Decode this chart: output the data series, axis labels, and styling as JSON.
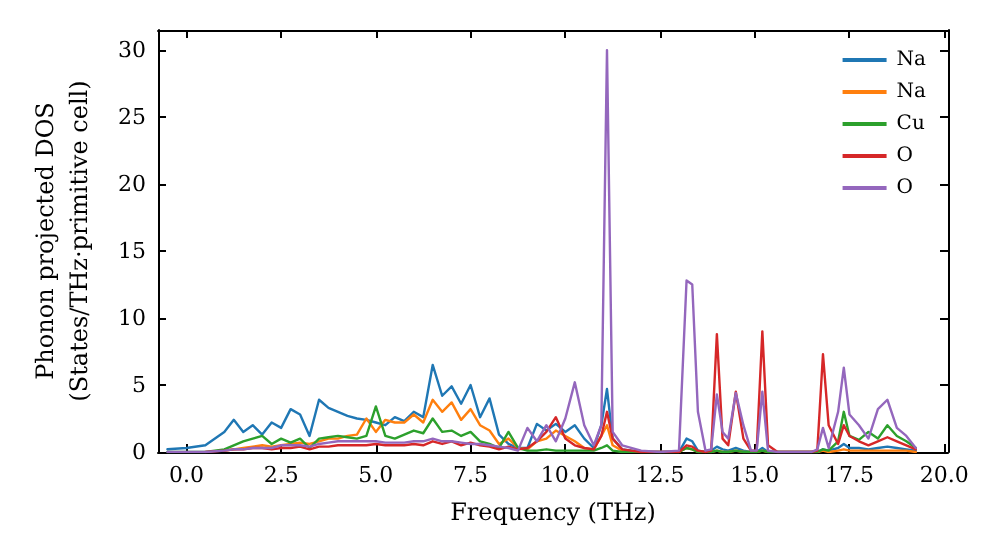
{
  "chart_data": {
    "type": "line",
    "xlabel": "Frequency (THz)",
    "ylabel": "Phonon projected DOS\n(States/THz·primitive cell)",
    "x": [
      -0.5,
      0,
      0.5,
      1,
      1.25,
      1.5,
      1.75,
      2,
      2.25,
      2.5,
      2.75,
      3,
      3.25,
      3.5,
      3.75,
      4,
      4.25,
      4.5,
      4.75,
      5,
      5.25,
      5.5,
      5.75,
      6,
      6.25,
      6.5,
      6.75,
      7,
      7.25,
      7.5,
      7.75,
      8,
      8.25,
      8.5,
      8.75,
      9,
      9.25,
      9.5,
      9.75,
      10,
      10.25,
      10.5,
      10.75,
      10.95,
      11.1,
      11.25,
      11.5,
      12,
      12.5,
      13,
      13.2,
      13.35,
      13.5,
      13.7,
      13.85,
      14.0,
      14.15,
      14.3,
      14.5,
      14.7,
      14.9,
      15.05,
      15.2,
      15.35,
      15.6,
      16,
      16.5,
      16.65,
      16.8,
      16.95,
      17.2,
      17.35,
      17.5,
      17.75,
      18,
      18.25,
      18.5,
      18.75,
      19,
      19.25
    ],
    "series": [
      {
        "name": "Na",
        "color": "#1f77b4",
        "values": [
          0.2,
          0.3,
          0.5,
          1.5,
          2.4,
          1.5,
          2.0,
          1.3,
          2.2,
          1.8,
          3.2,
          2.8,
          1.2,
          3.9,
          3.3,
          3.0,
          2.7,
          2.5,
          2.4,
          2.2,
          2.0,
          2.6,
          2.3,
          3.0,
          2.6,
          6.5,
          4.2,
          4.9,
          3.6,
          5.0,
          2.6,
          4.0,
          1.3,
          0.6,
          0.3,
          0.3,
          2.1,
          1.6,
          2.1,
          1.5,
          2.0,
          1.0,
          0.3,
          2.0,
          4.7,
          1.0,
          0.2,
          0,
          0,
          0,
          1.0,
          0.8,
          0.1,
          0,
          0.1,
          0.4,
          0.2,
          0.1,
          0.3,
          0.1,
          0,
          0,
          0.3,
          0,
          0,
          0,
          0,
          0,
          0.2,
          0.1,
          0.3,
          0.6,
          0.3,
          0.3,
          0.2,
          0.3,
          0.4,
          0.3,
          0.2,
          0.1
        ]
      },
      {
        "name": "Na",
        "color": "#ff7f0e",
        "values": [
          null,
          null,
          null,
          0.1,
          0.2,
          0.3,
          0.4,
          0.5,
          0.4,
          0.5,
          0.6,
          0.7,
          0.6,
          0.8,
          1.0,
          1.0,
          1.2,
          1.3,
          2.5,
          1.5,
          2.4,
          2.2,
          2.2,
          2.8,
          2.2,
          3.9,
          3.0,
          3.7,
          2.4,
          3.2,
          2.0,
          1.6,
          0.6,
          1.0,
          0.3,
          0.2,
          0.8,
          1.0,
          1.6,
          1.2,
          0.8,
          0.3,
          0.2,
          1.2,
          2.0,
          0.5,
          0.1,
          0,
          0,
          0,
          0.3,
          0.2,
          0,
          0,
          0,
          0.1,
          0,
          0,
          0.1,
          0,
          0,
          0,
          0.1,
          0,
          0,
          0,
          0,
          0,
          0.1,
          0,
          0.1,
          0.2,
          0.1,
          0.1,
          0.1,
          0.1,
          0.1,
          0.1,
          0.1,
          0
        ]
      },
      {
        "name": "Cu",
        "color": "#2ca02c",
        "values": [
          0,
          0,
          0,
          0.2,
          0.5,
          0.8,
          1.0,
          1.2,
          0.6,
          1.0,
          0.7,
          1.0,
          0.3,
          1.0,
          1.1,
          1.2,
          1.1,
          1.0,
          1.2,
          3.4,
          1.2,
          1.0,
          1.3,
          1.6,
          1.4,
          2.5,
          1.5,
          1.6,
          1.2,
          1.5,
          0.8,
          0.6,
          0.3,
          1.5,
          0.3,
          0.1,
          0.1,
          0.2,
          0.1,
          0.1,
          0.1,
          0.1,
          0.1,
          0.3,
          0.5,
          0.1,
          0,
          0,
          0,
          0,
          0.3,
          0.2,
          0,
          0,
          0,
          0.1,
          0,
          0,
          0.1,
          0,
          0,
          0,
          0.1,
          0,
          0,
          0,
          0,
          0,
          0.2,
          0.1,
          0.8,
          3.0,
          1.2,
          0.9,
          1.5,
          1.0,
          2.0,
          1.2,
          0.8,
          0.3
        ]
      },
      {
        "name": "O",
        "color": "#d62728",
        "values": [
          null,
          null,
          0,
          0.1,
          0.2,
          0.2,
          0.3,
          0.3,
          0.2,
          0.3,
          0.3,
          0.4,
          0.2,
          0.4,
          0.4,
          0.5,
          0.5,
          0.5,
          0.5,
          0.6,
          0.5,
          0.5,
          0.5,
          0.6,
          0.5,
          0.8,
          0.6,
          0.8,
          0.5,
          0.7,
          0.5,
          0.4,
          0.2,
          0.4,
          0.2,
          0.3,
          0.8,
          1.5,
          2.6,
          1.0,
          0.5,
          0.3,
          0.2,
          1.2,
          3.0,
          1.0,
          0.2,
          0,
          0,
          0,
          0.5,
          0.4,
          0.1,
          0,
          0.1,
          8.8,
          1.0,
          0.5,
          4.5,
          1.0,
          0.1,
          0.1,
          9.0,
          0.5,
          0,
          0,
          0,
          0.1,
          7.3,
          2.0,
          0.6,
          2.0,
          1.2,
          0.8,
          0.5,
          0.8,
          1.1,
          0.8,
          0.5,
          0.2
        ]
      },
      {
        "name": "O",
        "color": "#9467bd",
        "values": [
          0,
          0,
          0,
          0.1,
          0.2,
          0.2,
          0.3,
          0.3,
          0.3,
          0.5,
          0.5,
          0.5,
          0.4,
          0.6,
          0.7,
          0.8,
          0.8,
          0.8,
          0.8,
          0.8,
          0.7,
          0.7,
          0.7,
          0.8,
          0.8,
          1.0,
          0.8,
          0.8,
          0.7,
          0.6,
          0.6,
          0.5,
          0.4,
          0.3,
          0.1,
          1.8,
          0.8,
          2.0,
          0.8,
          2.5,
          5.2,
          2.0,
          0.5,
          2.0,
          30.0,
          1.5,
          0.5,
          0.1,
          0,
          0.1,
          12.8,
          12.5,
          3.0,
          0.1,
          0.2,
          4.3,
          1.5,
          1.0,
          4.4,
          2.0,
          0.1,
          0.1,
          4.5,
          0.1,
          0,
          0,
          0,
          0.2,
          1.8,
          0.3,
          3.0,
          6.3,
          2.8,
          2.0,
          1.0,
          3.2,
          3.9,
          1.8,
          1.2,
          0.3
        ]
      }
    ],
    "xlim": [
      -0.75,
      20.1
    ],
    "xticks": [
      {
        "value": 0,
        "label": "0.0"
      },
      {
        "value": 2.5,
        "label": "2.5"
      },
      {
        "value": 5,
        "label": "5.0"
      },
      {
        "value": 7.5,
        "label": "7.5"
      },
      {
        "value": 10,
        "label": "10.0"
      },
      {
        "value": 12.5,
        "label": "12.5"
      },
      {
        "value": 15,
        "label": "15.0"
      },
      {
        "value": 17.5,
        "label": "17.5"
      },
      {
        "value": 20,
        "label": "20.0"
      }
    ],
    "ylim": [
      0,
      31.5
    ],
    "yticks": [
      0,
      5,
      10,
      15,
      20,
      25,
      30
    ],
    "grid": false,
    "legend": "top right",
    "marker": "none",
    "line_style": "solid"
  }
}
